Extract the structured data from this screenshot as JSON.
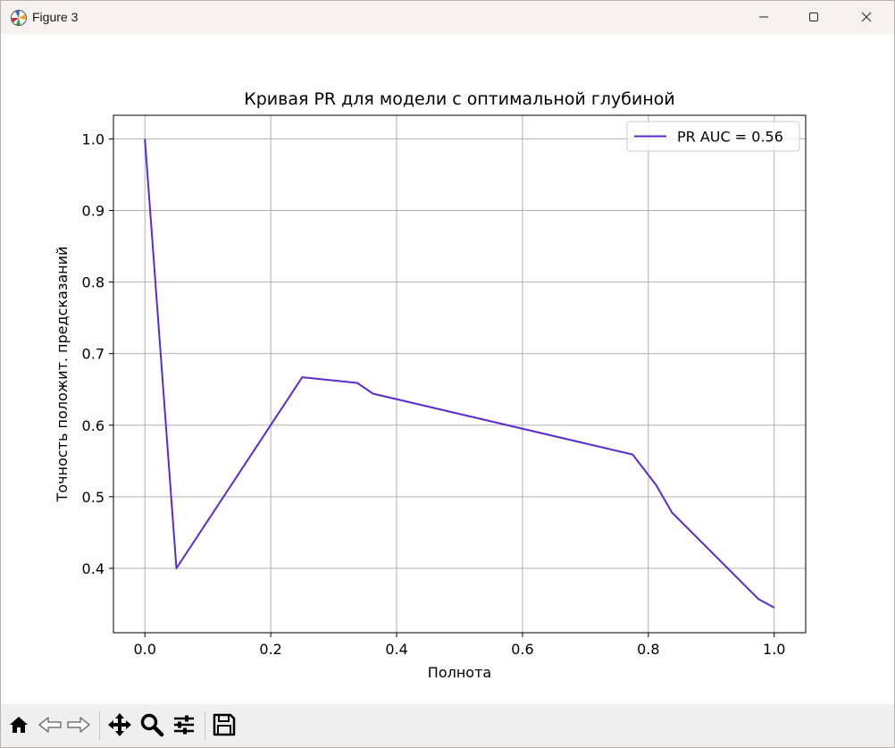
{
  "window": {
    "title": "Figure 3",
    "icons": {
      "app": "matplotlib-icon",
      "minimize": "minimize-icon",
      "maximize": "maximize-icon",
      "close": "close-icon"
    }
  },
  "toolbar": {
    "items": [
      "home-icon",
      "back-arrow-icon",
      "forward-arrow-icon",
      "pan-move-icon",
      "zoom-magnifier-icon",
      "configure-subplots-icon",
      "save-floppy-icon"
    ]
  },
  "colors": {
    "series": "#5b2bd1",
    "grid": "#b0b0b0",
    "axes": "#000000"
  },
  "chart_data": {
    "type": "line",
    "title": "Кривая PR для модели с оптимальной глубиной",
    "xlabel": "Полнота",
    "ylabel": "Точность положит. предсказаний",
    "xlim": [
      -0.05,
      1.05
    ],
    "ylim": [
      0.31,
      1.033
    ],
    "xticks": [
      "0.0",
      "0.2",
      "0.4",
      "0.6",
      "0.8",
      "1.0"
    ],
    "xtick_values": [
      0.0,
      0.2,
      0.4,
      0.6,
      0.8,
      1.0
    ],
    "yticks": [
      "0.4",
      "0.5",
      "0.6",
      "0.7",
      "0.8",
      "0.9",
      "1.0"
    ],
    "ytick_values": [
      0.4,
      0.5,
      0.6,
      0.7,
      0.8,
      0.9,
      1.0
    ],
    "grid": true,
    "legend_position": "top-right",
    "series": [
      {
        "name": "PR AUC = 0.56",
        "x": [
          0.0,
          0.05,
          0.25,
          0.3375,
          0.3625,
          0.775,
          0.8125,
          0.8375,
          0.975,
          1.0
        ],
        "y": [
          1.0,
          0.4,
          0.667,
          0.659,
          0.644,
          0.559,
          0.516,
          0.478,
          0.357,
          0.345
        ]
      }
    ]
  }
}
